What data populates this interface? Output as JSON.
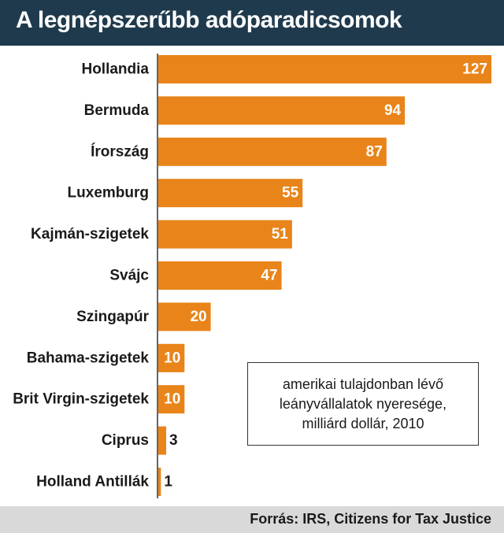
{
  "title": "A legnépszerűbb adóparadicsomok",
  "legend_lines": [
    "amerikai tulajdonban lévő",
    "leányvállalatok nyeresége,",
    "milliárd dollár, 2010"
  ],
  "source": "Forrás: IRS, Citizens for Tax Justice",
  "colors": {
    "bar": "#e8841a",
    "title_bg": "#1f3a4d",
    "source_bg": "#d9d9d9"
  },
  "chart_data": {
    "type": "bar",
    "orientation": "horizontal",
    "title": "A legnépszerűbb adóparadicsomok",
    "categories": [
      "Hollandia",
      "Bermuda",
      "Írország",
      "Luxemburg",
      "Kajmán-szigetek",
      "Svájc",
      "Szingapúr",
      "Bahama-szigetek",
      "Brit Virgin-szigetek",
      "Ciprus",
      "Holland Antillák"
    ],
    "values": [
      127,
      94,
      87,
      55,
      51,
      47,
      20,
      10,
      10,
      3,
      1
    ],
    "xlim": [
      0,
      127
    ],
    "grid": false,
    "legend": "bottom-right"
  }
}
